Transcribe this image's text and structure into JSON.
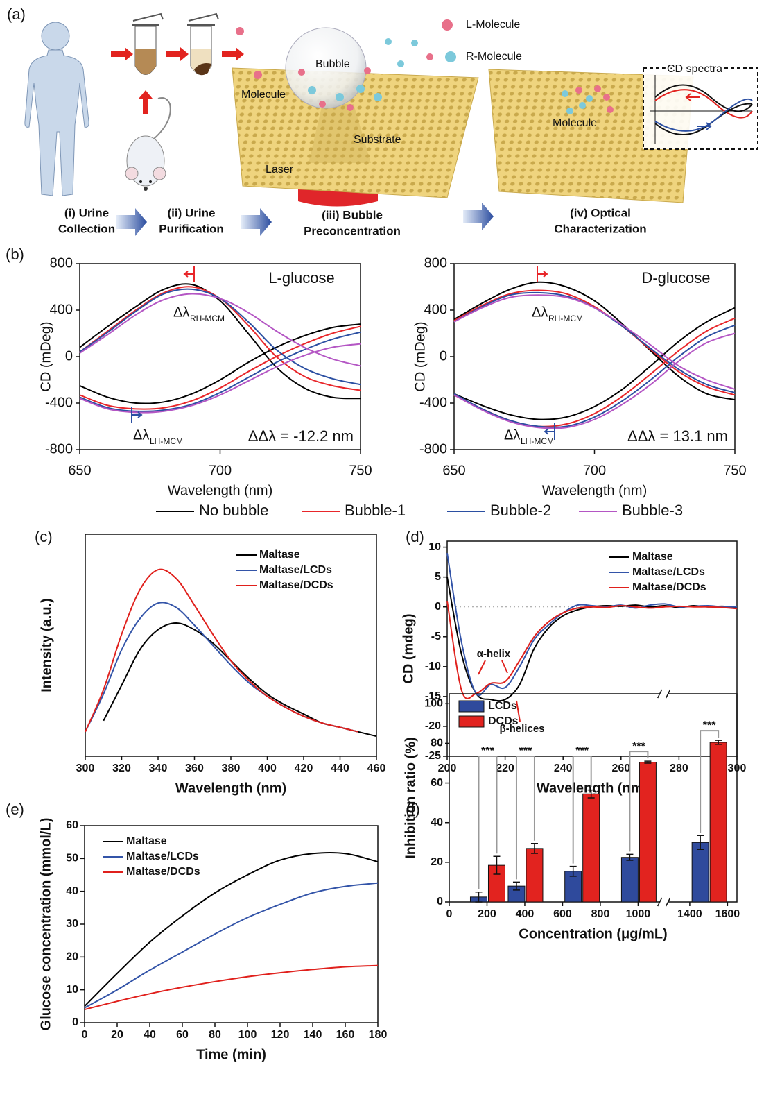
{
  "panel_a": {
    "label": "(a)",
    "legend": [
      "L-Molecule",
      "R-Molecule"
    ],
    "labels": {
      "bubble": "Bubble",
      "molecule_left": "Molecule",
      "substrate": "Substrate",
      "laser": "Laser",
      "cd_spectra": "CD spectra",
      "molecule_right": "Molecule"
    },
    "steps": [
      [
        "(i) Urine",
        "Collection"
      ],
      [
        "(ii) Urine",
        "Purification"
      ],
      [
        "(iii) Bubble",
        "Preconcentration"
      ],
      [
        "(iv) Optical",
        "Characterization"
      ]
    ]
  },
  "chart_data": [
    {
      "type": "line",
      "panel_label": "(b)",
      "title": "L-glucose",
      "delta_label": "ΔΔλ = -12.2 nm",
      "x": [
        650,
        660,
        670,
        680,
        690,
        700,
        710,
        720,
        730,
        740,
        750
      ],
      "xlim": [
        650,
        750
      ],
      "xticks": [
        650,
        700,
        750
      ],
      "ylim": [
        -800,
        800
      ],
      "yticks": [
        -800,
        -400,
        0,
        400,
        800
      ],
      "xlabel": "Wavelength (nm)",
      "ylabel": "CD (mDeg)",
      "legend": "bottom",
      "annotations": [
        {
          "text": "Δλ",
          "sub": "RH-MCM",
          "color": "#e8262a"
        },
        {
          "text": "Δλ",
          "sub": "LH-MCM",
          "color": "#2b4fa2"
        }
      ],
      "series": [
        {
          "name": "No bubble",
          "color": "#000000",
          "values": [
            80,
            260,
            430,
            580,
            620,
            480,
            200,
            -90,
            -270,
            -350,
            -360
          ],
          "values_lh": [
            -250,
            -350,
            -400,
            -390,
            -320,
            -200,
            -50,
            80,
            180,
            250,
            280
          ]
        },
        {
          "name": "Bubble-1",
          "color": "#e8262a",
          "values": [
            40,
            220,
            400,
            550,
            600,
            500,
            270,
            0,
            -170,
            -250,
            -290
          ],
          "values_lh": [
            -330,
            -420,
            -450,
            -440,
            -380,
            -270,
            -130,
            0,
            110,
            200,
            260
          ]
        },
        {
          "name": "Bubble-2",
          "color": "#2b4fa2",
          "values": [
            40,
            210,
            390,
            540,
            580,
            500,
            300,
            60,
            -100,
            -190,
            -240
          ],
          "values_lh": [
            -350,
            -440,
            -470,
            -460,
            -410,
            -310,
            -180,
            -50,
            60,
            150,
            210
          ]
        },
        {
          "name": "Bubble-3",
          "color": "#b456c4",
          "values": [
            30,
            190,
            360,
            490,
            540,
            500,
            380,
            220,
            80,
            -20,
            -80
          ],
          "values_lh": [
            -360,
            -450,
            -480,
            -470,
            -420,
            -330,
            -210,
            -90,
            10,
            80,
            110
          ]
        }
      ]
    },
    {
      "type": "line",
      "title": "D-glucose",
      "delta_label": "ΔΔλ = 13.1 nm",
      "x": [
        650,
        660,
        670,
        680,
        690,
        700,
        710,
        720,
        730,
        740,
        750
      ],
      "xlim": [
        650,
        750
      ],
      "xticks": [
        650,
        700,
        750
      ],
      "ylim": [
        -800,
        800
      ],
      "yticks": [
        -800,
        -400,
        0,
        400,
        800
      ],
      "xlabel": "Wavelength (nm)",
      "ylabel": "CD (mDeg)",
      "annotations": [
        {
          "text": "Δλ",
          "sub": "RH-MCM",
          "color": "#e8262a"
        },
        {
          "text": "Δλ",
          "sub": "LH-MCM",
          "color": "#2b4fa2"
        }
      ],
      "series": [
        {
          "color": "#000000",
          "values": [
            320,
            460,
            580,
            640,
            600,
            480,
            280,
            50,
            -170,
            -320,
            -370
          ],
          "values_lh": [
            -320,
            -420,
            -500,
            -540,
            -520,
            -430,
            -280,
            -80,
            130,
            300,
            420
          ]
        },
        {
          "color": "#e8262a",
          "values": [
            310,
            440,
            540,
            570,
            540,
            430,
            260,
            60,
            -130,
            -260,
            -330
          ],
          "values_lh": [
            -330,
            -450,
            -550,
            -600,
            -580,
            -490,
            -340,
            -150,
            50,
            220,
            330
          ]
        },
        {
          "color": "#2b4fa2",
          "values": [
            300,
            430,
            530,
            550,
            520,
            420,
            260,
            70,
            -110,
            -240,
            -310
          ],
          "values_lh": [
            -320,
            -450,
            -550,
            -600,
            -600,
            -520,
            -380,
            -200,
            0,
            170,
            270
          ]
        },
        {
          "color": "#b456c4",
          "values": [
            300,
            420,
            510,
            530,
            510,
            420,
            270,
            100,
            -80,
            -200,
            -280
          ],
          "values_lh": [
            -330,
            -460,
            -560,
            -610,
            -610,
            -540,
            -410,
            -240,
            -40,
            120,
            200
          ]
        }
      ]
    },
    {
      "type": "line",
      "panel_label": "(c)",
      "x": [
        300,
        310,
        320,
        330,
        340,
        350,
        360,
        370,
        380,
        390,
        400,
        410,
        420,
        430,
        440,
        450,
        460
      ],
      "xlim": [
        300,
        460
      ],
      "xticks": [
        300,
        320,
        340,
        360,
        380,
        400,
        420,
        440,
        460
      ],
      "ylim": [
        0,
        100
      ],
      "xlabel": "Wavelength (nm)",
      "ylabel": "Intensity (a.u.)",
      "legend": "upper right",
      "series": [
        {
          "name": "Maltase",
          "color": "#000000",
          "values": [
            null,
            16,
            32,
            48,
            57,
            60,
            57,
            51,
            43,
            35,
            28,
            23,
            19,
            15,
            13,
            11,
            9
          ]
        },
        {
          "name": "Maltase/LCDs",
          "color": "#3354a8",
          "values": [
            11,
            28,
            48,
            62,
            69,
            67,
            59,
            50,
            41,
            33,
            27,
            22,
            18,
            15,
            13,
            11,
            null
          ]
        },
        {
          "name": "Maltase/DCDs",
          "color": "#e0201c",
          "values": [
            11,
            30,
            55,
            75,
            84,
            80,
            68,
            55,
            43,
            34,
            27,
            22,
            18,
            15,
            13,
            11,
            null
          ]
        }
      ]
    },
    {
      "type": "line",
      "panel_label": "(d)",
      "x": [
        200,
        205,
        210,
        215,
        220,
        225,
        230,
        235,
        240,
        245,
        250,
        255,
        260,
        265,
        270,
        275,
        280,
        285,
        290,
        295,
        300
      ],
      "xlim": [
        200,
        300
      ],
      "xticks": [
        200,
        220,
        240,
        260,
        280,
        300
      ],
      "ylim": [
        -25,
        11
      ],
      "yticks": [
        -25,
        -20,
        -15,
        -10,
        -5,
        0,
        5,
        10
      ],
      "xlabel": "Wavelength (nm)",
      "ylabel": "CD (mdeg)",
      "legend": "upper right",
      "zero_line": true,
      "annotations": [
        "α-helix",
        "β-helices"
      ],
      "series": [
        {
          "name": "Maltase",
          "color": "#000000",
          "values": [
            5,
            -8,
            -14.5,
            -15.5,
            -15.5,
            -13,
            -7,
            -3.5,
            -1.5,
            -0.5,
            0,
            0.2,
            0.1,
            0.3,
            0,
            0.2,
            -0.1,
            0.2,
            0,
            0.1,
            -0.2
          ]
        },
        {
          "name": "Maltase/LCDs",
          "color": "#3354a8",
          "values": [
            9,
            -6,
            -14.5,
            -13,
            -13.5,
            -10,
            -5.5,
            -3,
            -1,
            0.3,
            0.2,
            0,
            0.3,
            -0.2,
            0.3,
            0.5,
            0,
            0.1,
            0.2,
            0,
            0
          ]
        },
        {
          "name": "Maltase/DCDs",
          "color": "#e0201c",
          "values": [
            1,
            -14,
            -14.5,
            -12.8,
            -12.5,
            -9,
            -5,
            -2.5,
            -1,
            -0.2,
            0,
            -0.1,
            0.2,
            0,
            -0.2,
            0,
            0.1,
            0,
            0,
            -0.1,
            -0.3
          ]
        }
      ]
    },
    {
      "type": "line",
      "panel_label": "(e)",
      "x": [
        0,
        20,
        40,
        60,
        80,
        100,
        120,
        140,
        160,
        180
      ],
      "xlim": [
        0,
        180
      ],
      "xticks": [
        0,
        20,
        40,
        60,
        80,
        100,
        120,
        140,
        160,
        180
      ],
      "ylim": [
        0,
        60
      ],
      "yticks": [
        0,
        10,
        20,
        30,
        40,
        50,
        60
      ],
      "xlabel": "Time (min)",
      "ylabel": "Glucose concentration (mmol/L)",
      "legend": "upper left",
      "series": [
        {
          "name": "Maltase",
          "color": "#000000",
          "values": [
            5,
            15,
            24.5,
            32.5,
            39.5,
            45,
            49.5,
            51.5,
            51.5,
            49
          ]
        },
        {
          "name": "Maltase/LCDs",
          "color": "#3354a8",
          "values": [
            4.5,
            10,
            16,
            21.5,
            27,
            32,
            36,
            39.5,
            41.5,
            42.5
          ]
        },
        {
          "name": "Maltase/DCDs",
          "color": "#e0201c",
          "values": [
            4,
            6.5,
            8.8,
            10.8,
            12.5,
            14,
            15.2,
            16.2,
            17,
            17.4
          ]
        }
      ]
    },
    {
      "type": "bar",
      "panel_label": "(f)",
      "x": [
        200,
        400,
        700,
        1000,
        1500
      ],
      "xlim": [
        0,
        1650
      ],
      "xbreak": [
        1100,
        1300
      ],
      "xticks": [
        0,
        200,
        400,
        600,
        800,
        1000,
        1400,
        1600
      ],
      "ylim": [
        0,
        105
      ],
      "yticks": [
        0,
        20,
        40,
        60,
        80,
        100
      ],
      "xlabel": "Concentration (μg/mL)",
      "ylabel": "Inhibition ratio (%)",
      "legend": "upper left",
      "significance": [
        "***",
        "***",
        "***",
        "***",
        "***"
      ],
      "series": [
        {
          "name": "LCDs",
          "color": "#2f4a9c",
          "values": [
            2.5,
            8,
            15.5,
            22.5,
            30
          ],
          "errors": [
            2.5,
            2,
            2.5,
            1.5,
            3.5
          ]
        },
        {
          "name": "DCDs",
          "color": "#e2231f",
          "values": [
            18.5,
            27,
            54.5,
            70.5,
            80.5
          ],
          "errors": [
            4.5,
            2.5,
            2,
            0.5,
            1
          ]
        }
      ]
    }
  ]
}
